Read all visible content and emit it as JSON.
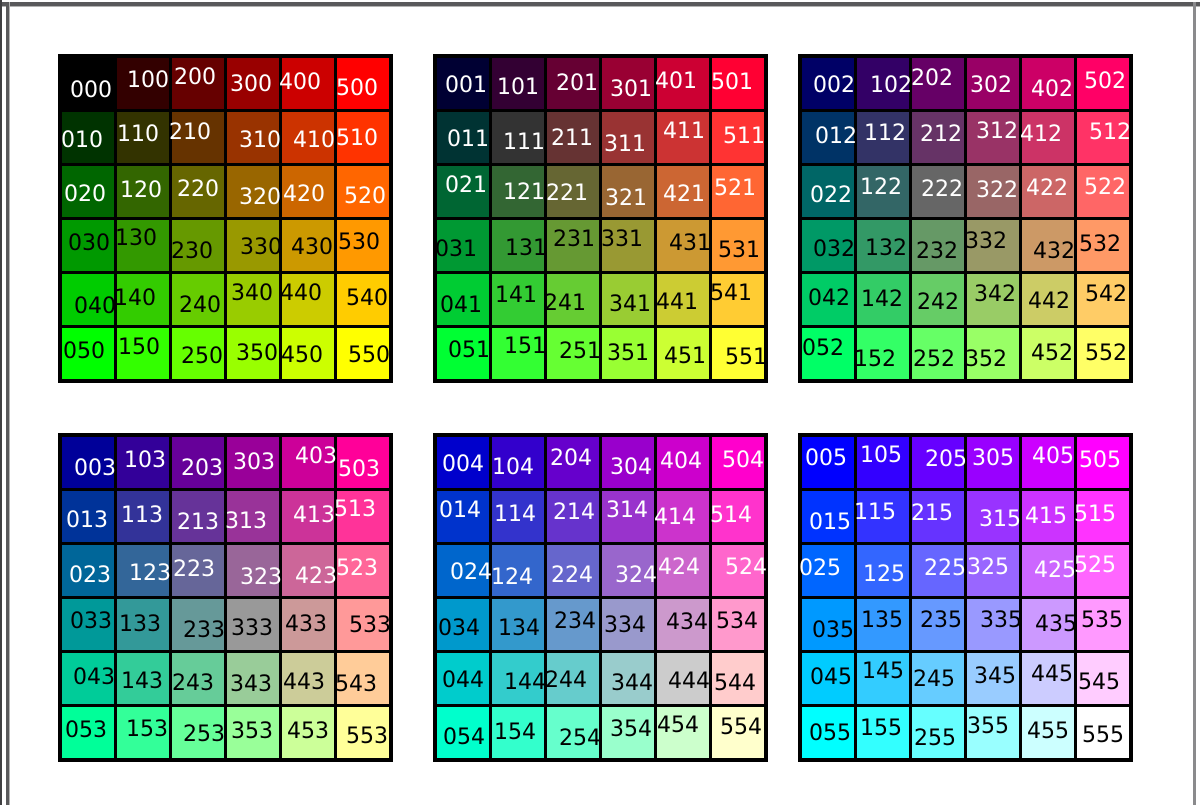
{
  "frame": {
    "top_color": "#59595b",
    "left_outer_color": "#3f3f41",
    "left_inner_color": "#59595b",
    "right_color": "#8a8a8c",
    "page_background": "#FFFFFF",
    "grid_border_color": "#000000"
  },
  "chart_data": {
    "type": "heatmap",
    "layout": "6 grids of 6x6 swatches; columns = red digit 0-5, rows = green digit 0-5, grid = blue digit 0-5; hex value = digit x 0x33",
    "legend_position": "none",
    "grid": "off",
    "text_color_by_row": [
      "#FFFFFF",
      "#FFFFFF",
      "#FFFFFF",
      "#000000",
      "#000000",
      "#000000"
    ],
    "grids": [
      {
        "blue_digit": 0,
        "rows": [
          [
            [
              "000",
              "#000000"
            ],
            [
              "100",
              "#330000"
            ],
            [
              "200",
              "#660000"
            ],
            [
              "300",
              "#990000"
            ],
            [
              "400",
              "#CC0000"
            ],
            [
              "500",
              "#FF0000"
            ]
          ],
          [
            [
              "010",
              "#003300"
            ],
            [
              "110",
              "#333300"
            ],
            [
              "210",
              "#663300"
            ],
            [
              "310",
              "#993300"
            ],
            [
              "410",
              "#CC3300"
            ],
            [
              "510",
              "#FF3300"
            ]
          ],
          [
            [
              "020",
              "#006600"
            ],
            [
              "120",
              "#336600"
            ],
            [
              "220",
              "#666600"
            ],
            [
              "320",
              "#996600"
            ],
            [
              "420",
              "#CC6600"
            ],
            [
              "520",
              "#FF6600"
            ]
          ],
          [
            [
              "030",
              "#009900"
            ],
            [
              "130",
              "#339900"
            ],
            [
              "230",
              "#669900"
            ],
            [
              "330",
              "#999900"
            ],
            [
              "430",
              "#CC9900"
            ],
            [
              "530",
              "#FF9900"
            ]
          ],
          [
            [
              "040",
              "#00CC00"
            ],
            [
              "140",
              "#33CC00"
            ],
            [
              "240",
              "#66CC00"
            ],
            [
              "340",
              "#99CC00"
            ],
            [
              "440",
              "#CCCC00"
            ],
            [
              "540",
              "#FFCC00"
            ]
          ],
          [
            [
              "050",
              "#00FF00"
            ],
            [
              "150",
              "#33FF00"
            ],
            [
              "250",
              "#66FF00"
            ],
            [
              "350",
              "#99FF00"
            ],
            [
              "450",
              "#CCFF00"
            ],
            [
              "550",
              "#FFFF00"
            ]
          ]
        ]
      },
      {
        "blue_digit": 1,
        "rows": [
          [
            [
              "001",
              "#000033"
            ],
            [
              "101",
              "#330033"
            ],
            [
              "201",
              "#660033"
            ],
            [
              "301",
              "#990033"
            ],
            [
              "401",
              "#CC0033"
            ],
            [
              "501",
              "#FF0033"
            ]
          ],
          [
            [
              "011",
              "#003333"
            ],
            [
              "111",
              "#333333"
            ],
            [
              "211",
              "#663333"
            ],
            [
              "311",
              "#993333"
            ],
            [
              "411",
              "#CC3333"
            ],
            [
              "511",
              "#FF3333"
            ]
          ],
          [
            [
              "021",
              "#006633"
            ],
            [
              "121",
              "#336633"
            ],
            [
              "221",
              "#666633"
            ],
            [
              "321",
              "#996633"
            ],
            [
              "421",
              "#CC6633"
            ],
            [
              "521",
              "#FF6633"
            ]
          ],
          [
            [
              "031",
              "#009933"
            ],
            [
              "131",
              "#339933"
            ],
            [
              "231",
              "#669933"
            ],
            [
              "331",
              "#999933"
            ],
            [
              "431",
              "#CC9933"
            ],
            [
              "531",
              "#FF9933"
            ]
          ],
          [
            [
              "041",
              "#00CC33"
            ],
            [
              "141",
              "#33CC33"
            ],
            [
              "241",
              "#66CC33"
            ],
            [
              "341",
              "#99CC33"
            ],
            [
              "441",
              "#CCCC33"
            ],
            [
              "541",
              "#FFCC33"
            ]
          ],
          [
            [
              "051",
              "#00FF33"
            ],
            [
              "151",
              "#33FF33"
            ],
            [
              "251",
              "#66FF33"
            ],
            [
              "351",
              "#99FF33"
            ],
            [
              "451",
              "#CCFF33"
            ],
            [
              "551",
              "#FFFF33"
            ]
          ]
        ]
      },
      {
        "blue_digit": 2,
        "rows": [
          [
            [
              "002",
              "#000066"
            ],
            [
              "102",
              "#330066"
            ],
            [
              "202",
              "#660066"
            ],
            [
              "302",
              "#990066"
            ],
            [
              "402",
              "#CC0066"
            ],
            [
              "502",
              "#FF0066"
            ]
          ],
          [
            [
              "012",
              "#003366"
            ],
            [
              "112",
              "#333366"
            ],
            [
              "212",
              "#663366"
            ],
            [
              "312",
              "#993366"
            ],
            [
              "412",
              "#CC3366"
            ],
            [
              "512",
              "#FF3366"
            ]
          ],
          [
            [
              "022",
              "#006666"
            ],
            [
              "122",
              "#336666"
            ],
            [
              "222",
              "#666666"
            ],
            [
              "322",
              "#996666"
            ],
            [
              "422",
              "#CC6666"
            ],
            [
              "522",
              "#FF6666"
            ]
          ],
          [
            [
              "032",
              "#009966"
            ],
            [
              "132",
              "#339966"
            ],
            [
              "232",
              "#669966"
            ],
            [
              "332",
              "#999966"
            ],
            [
              "432",
              "#CC9966"
            ],
            [
              "532",
              "#FF9966"
            ]
          ],
          [
            [
              "042",
              "#00CC66"
            ],
            [
              "142",
              "#33CC66"
            ],
            [
              "242",
              "#66CC66"
            ],
            [
              "342",
              "#99CC66"
            ],
            [
              "442",
              "#CCCC66"
            ],
            [
              "542",
              "#FFCC66"
            ]
          ],
          [
            [
              "052",
              "#00FF66"
            ],
            [
              "152",
              "#33FF66"
            ],
            [
              "252",
              "#66FF66"
            ],
            [
              "352",
              "#99FF66"
            ],
            [
              "452",
              "#CCFF66"
            ],
            [
              "552",
              "#FFFF66"
            ]
          ]
        ]
      },
      {
        "blue_digit": 3,
        "rows": [
          [
            [
              "003",
              "#000099"
            ],
            [
              "103",
              "#330099"
            ],
            [
              "203",
              "#660099"
            ],
            [
              "303",
              "#990099"
            ],
            [
              "403",
              "#CC0099"
            ],
            [
              "503",
              "#FF0099"
            ]
          ],
          [
            [
              "013",
              "#003399"
            ],
            [
              "113",
              "#333399"
            ],
            [
              "213",
              "#663399"
            ],
            [
              "313",
              "#993399"
            ],
            [
              "413",
              "#CC3399"
            ],
            [
              "513",
              "#FF3399"
            ]
          ],
          [
            [
              "023",
              "#006699"
            ],
            [
              "123",
              "#336699"
            ],
            [
              "223",
              "#666699"
            ],
            [
              "323",
              "#996699"
            ],
            [
              "423",
              "#CC6699"
            ],
            [
              "523",
              "#FF6699"
            ]
          ],
          [
            [
              "033",
              "#009999"
            ],
            [
              "133",
              "#339999"
            ],
            [
              "233",
              "#669999"
            ],
            [
              "333",
              "#999999"
            ],
            [
              "433",
              "#CC9999"
            ],
            [
              "533",
              "#FF9999"
            ]
          ],
          [
            [
              "043",
              "#00CC99"
            ],
            [
              "143",
              "#33CC99"
            ],
            [
              "243",
              "#66CC99"
            ],
            [
              "343",
              "#99CC99"
            ],
            [
              "443",
              "#CCCC99"
            ],
            [
              "543",
              "#FFCC99"
            ]
          ],
          [
            [
              "053",
              "#00FF99"
            ],
            [
              "153",
              "#33FF99"
            ],
            [
              "253",
              "#66FF99"
            ],
            [
              "353",
              "#99FF99"
            ],
            [
              "453",
              "#CCFF99"
            ],
            [
              "553",
              "#FFFF99"
            ]
          ]
        ]
      },
      {
        "blue_digit": 4,
        "rows": [
          [
            [
              "004",
              "#0000CC"
            ],
            [
              "104",
              "#3300CC"
            ],
            [
              "204",
              "#6600CC"
            ],
            [
              "304",
              "#9900CC"
            ],
            [
              "404",
              "#CC00CC"
            ],
            [
              "504",
              "#FF00CC"
            ]
          ],
          [
            [
              "014",
              "#0033CC"
            ],
            [
              "114",
              "#3333CC"
            ],
            [
              "214",
              "#6633CC"
            ],
            [
              "314",
              "#9933CC"
            ],
            [
              "414",
              "#CC33CC"
            ],
            [
              "514",
              "#FF33CC"
            ]
          ],
          [
            [
              "024",
              "#0066CC"
            ],
            [
              "124",
              "#3366CC"
            ],
            [
              "224",
              "#6666CC"
            ],
            [
              "324",
              "#9966CC"
            ],
            [
              "424",
              "#CC66CC"
            ],
            [
              "524",
              "#FF66CC"
            ]
          ],
          [
            [
              "034",
              "#0099CC"
            ],
            [
              "134",
              "#3399CC"
            ],
            [
              "234",
              "#6699CC"
            ],
            [
              "334",
              "#9999CC"
            ],
            [
              "434",
              "#CC99CC"
            ],
            [
              "534",
              "#FF99CC"
            ]
          ],
          [
            [
              "044",
              "#00CCCC"
            ],
            [
              "144",
              "#33CCCC"
            ],
            [
              "244",
              "#66CCCC"
            ],
            [
              "344",
              "#99CCCC"
            ],
            [
              "444",
              "#CCCCCC"
            ],
            [
              "544",
              "#FFCCCC"
            ]
          ],
          [
            [
              "054",
              "#00FFCC"
            ],
            [
              "154",
              "#33FFCC"
            ],
            [
              "254",
              "#66FFCC"
            ],
            [
              "354",
              "#99FFCC"
            ],
            [
              "454",
              "#CCFFCC"
            ],
            [
              "554",
              "#FFFFCC"
            ]
          ]
        ]
      },
      {
        "blue_digit": 5,
        "rows": [
          [
            [
              "005",
              "#0000FF"
            ],
            [
              "105",
              "#3300FF"
            ],
            [
              "205",
              "#6600FF"
            ],
            [
              "305",
              "#9900FF"
            ],
            [
              "405",
              "#CC00FF"
            ],
            [
              "505",
              "#FF00FF"
            ]
          ],
          [
            [
              "015",
              "#0033FF"
            ],
            [
              "115",
              "#3333FF"
            ],
            [
              "215",
              "#6633FF"
            ],
            [
              "315",
              "#9933FF"
            ],
            [
              "415",
              "#CC33FF"
            ],
            [
              "515",
              "#FF33FF"
            ]
          ],
          [
            [
              "025",
              "#0066FF"
            ],
            [
              "125",
              "#3366FF"
            ],
            [
              "225",
              "#6666FF"
            ],
            [
              "325",
              "#9966FF"
            ],
            [
              "425",
              "#CC66FF"
            ],
            [
              "525",
              "#FF66FF"
            ]
          ],
          [
            [
              "035",
              "#0099FF"
            ],
            [
              "135",
              "#3399FF"
            ],
            [
              "235",
              "#6699FF"
            ],
            [
              "335",
              "#9999FF"
            ],
            [
              "435",
              "#CC99FF"
            ],
            [
              "535",
              "#FF99FF"
            ]
          ],
          [
            [
              "045",
              "#00CCFF"
            ],
            [
              "145",
              "#33CCFF"
            ],
            [
              "245",
              "#66CCFF"
            ],
            [
              "345",
              "#99CCFF"
            ],
            [
              "445",
              "#CCCCFF"
            ],
            [
              "545",
              "#FFCCFF"
            ]
          ],
          [
            [
              "055",
              "#00FFFF"
            ],
            [
              "155",
              "#33FFFF"
            ],
            [
              "255",
              "#66FFFF"
            ],
            [
              "355",
              "#99FFFF"
            ],
            [
              "455",
              "#CCFFFF"
            ],
            [
              "555",
              "#FFFFFF"
            ]
          ]
        ]
      }
    ]
  }
}
